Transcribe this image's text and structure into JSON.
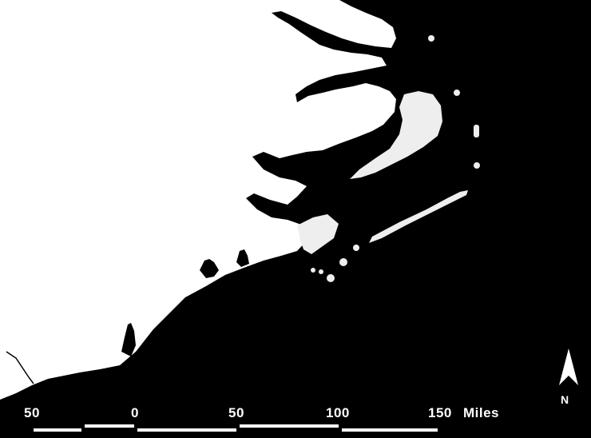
{
  "scale_bar": {
    "labels": [
      "50",
      "0",
      "50",
      "100",
      "150"
    ],
    "unit": "Miles"
  },
  "north_arrow": {
    "label": "N"
  },
  "colors": {
    "land": "#ffffff",
    "water": "#000000",
    "barrier_islands": "#eeeeee"
  }
}
